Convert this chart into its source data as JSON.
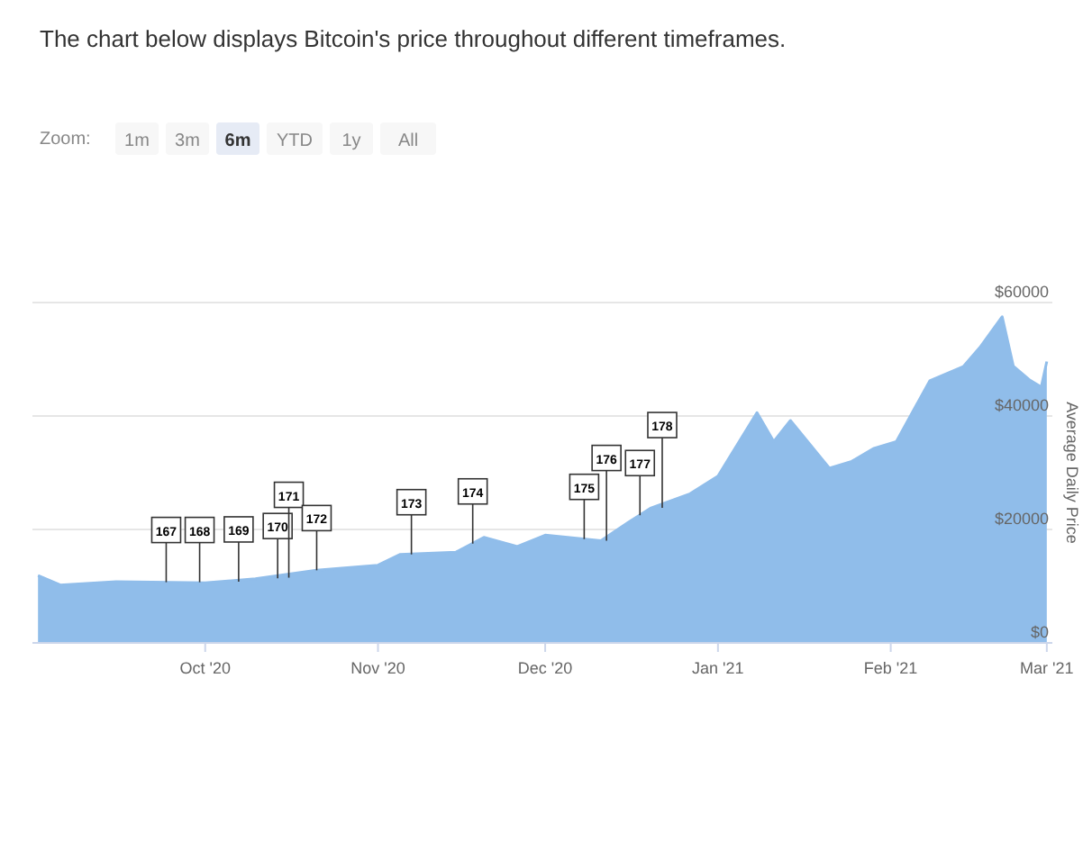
{
  "chart_data": {
    "type": "area",
    "title": "The chart below displays Bitcoin's price throughout different timeframes.",
    "ylabel": "Average Daily Price",
    "x": [
      "2020-09-01",
      "2020-09-05",
      "2020-09-15",
      "2020-10-01",
      "2020-10-10",
      "2020-10-21",
      "2020-11-01",
      "2020-11-05",
      "2020-11-15",
      "2020-11-20",
      "2020-11-26",
      "2020-12-01",
      "2020-12-11",
      "2020-12-16",
      "2020-12-20",
      "2020-12-27",
      "2021-01-01",
      "2021-01-08",
      "2021-01-11",
      "2021-01-14",
      "2021-01-21",
      "2021-01-25",
      "2021-01-29",
      "2021-02-02",
      "2021-02-08",
      "2021-02-14",
      "2021-02-17",
      "2021-02-21",
      "2021-02-23",
      "2021-02-26",
      "2021-02-28",
      "2021-03-01"
    ],
    "values": [
      11900,
      10200,
      10800,
      10600,
      11300,
      12800,
      13700,
      15600,
      16000,
      18600,
      17000,
      19000,
      18000,
      21300,
      23800,
      26300,
      29400,
      40600,
      35500,
      39200,
      30800,
      32000,
      34300,
      35500,
      46200,
      48700,
      52100,
      57500,
      48800,
      46300,
      45100,
      49600
    ],
    "color": "#90bdea",
    "xlim": [
      "2020-08-31",
      "2021-03-02"
    ],
    "xticks": [
      {
        "value": "2020-10-01",
        "label": "Oct '20"
      },
      {
        "value": "2020-11-01",
        "label": "Nov '20"
      },
      {
        "value": "2020-12-01",
        "label": "Dec '20"
      },
      {
        "value": "2021-01-01",
        "label": "Jan '21"
      },
      {
        "value": "2021-02-01",
        "label": "Feb '21"
      },
      {
        "value": "2021-03-01",
        "label": "Mar '21"
      }
    ],
    "ylim": [
      0,
      60000
    ],
    "yticks": [
      {
        "value": 0,
        "label": "$0"
      },
      {
        "value": 20000,
        "label": "$20000"
      },
      {
        "value": 40000,
        "label": "$40000"
      },
      {
        "value": 60000,
        "label": "$60000"
      }
    ],
    "grid": "y",
    "annotations": [
      "Zoom:",
      "1m",
      "3m",
      "6m",
      "YTD",
      "1y",
      "All",
      {
        "text": "167",
        "x": "2020-09-24",
        "y": 10700
      },
      {
        "text": "168",
        "x": "2020-09-30",
        "y": 10700
      },
      {
        "text": "169",
        "x": "2020-10-07",
        "y": 10800
      },
      {
        "text": "170",
        "x": "2020-10-14",
        "y": 11400
      },
      {
        "text": "171",
        "x": "2020-10-16",
        "y": 11500
      },
      {
        "text": "172",
        "x": "2020-10-21",
        "y": 12800
      },
      {
        "text": "173",
        "x": "2020-11-07",
        "y": 15600
      },
      {
        "text": "174",
        "x": "2020-11-18",
        "y": 17500
      },
      {
        "text": "175",
        "x": "2020-12-08",
        "y": 18300
      },
      {
        "text": "176",
        "x": "2020-12-12",
        "y": 18000
      },
      {
        "text": "177",
        "x": "2020-12-18",
        "y": 22500
      },
      {
        "text": "178",
        "x": "2020-12-22",
        "y": 23800
      }
    ]
  }
}
